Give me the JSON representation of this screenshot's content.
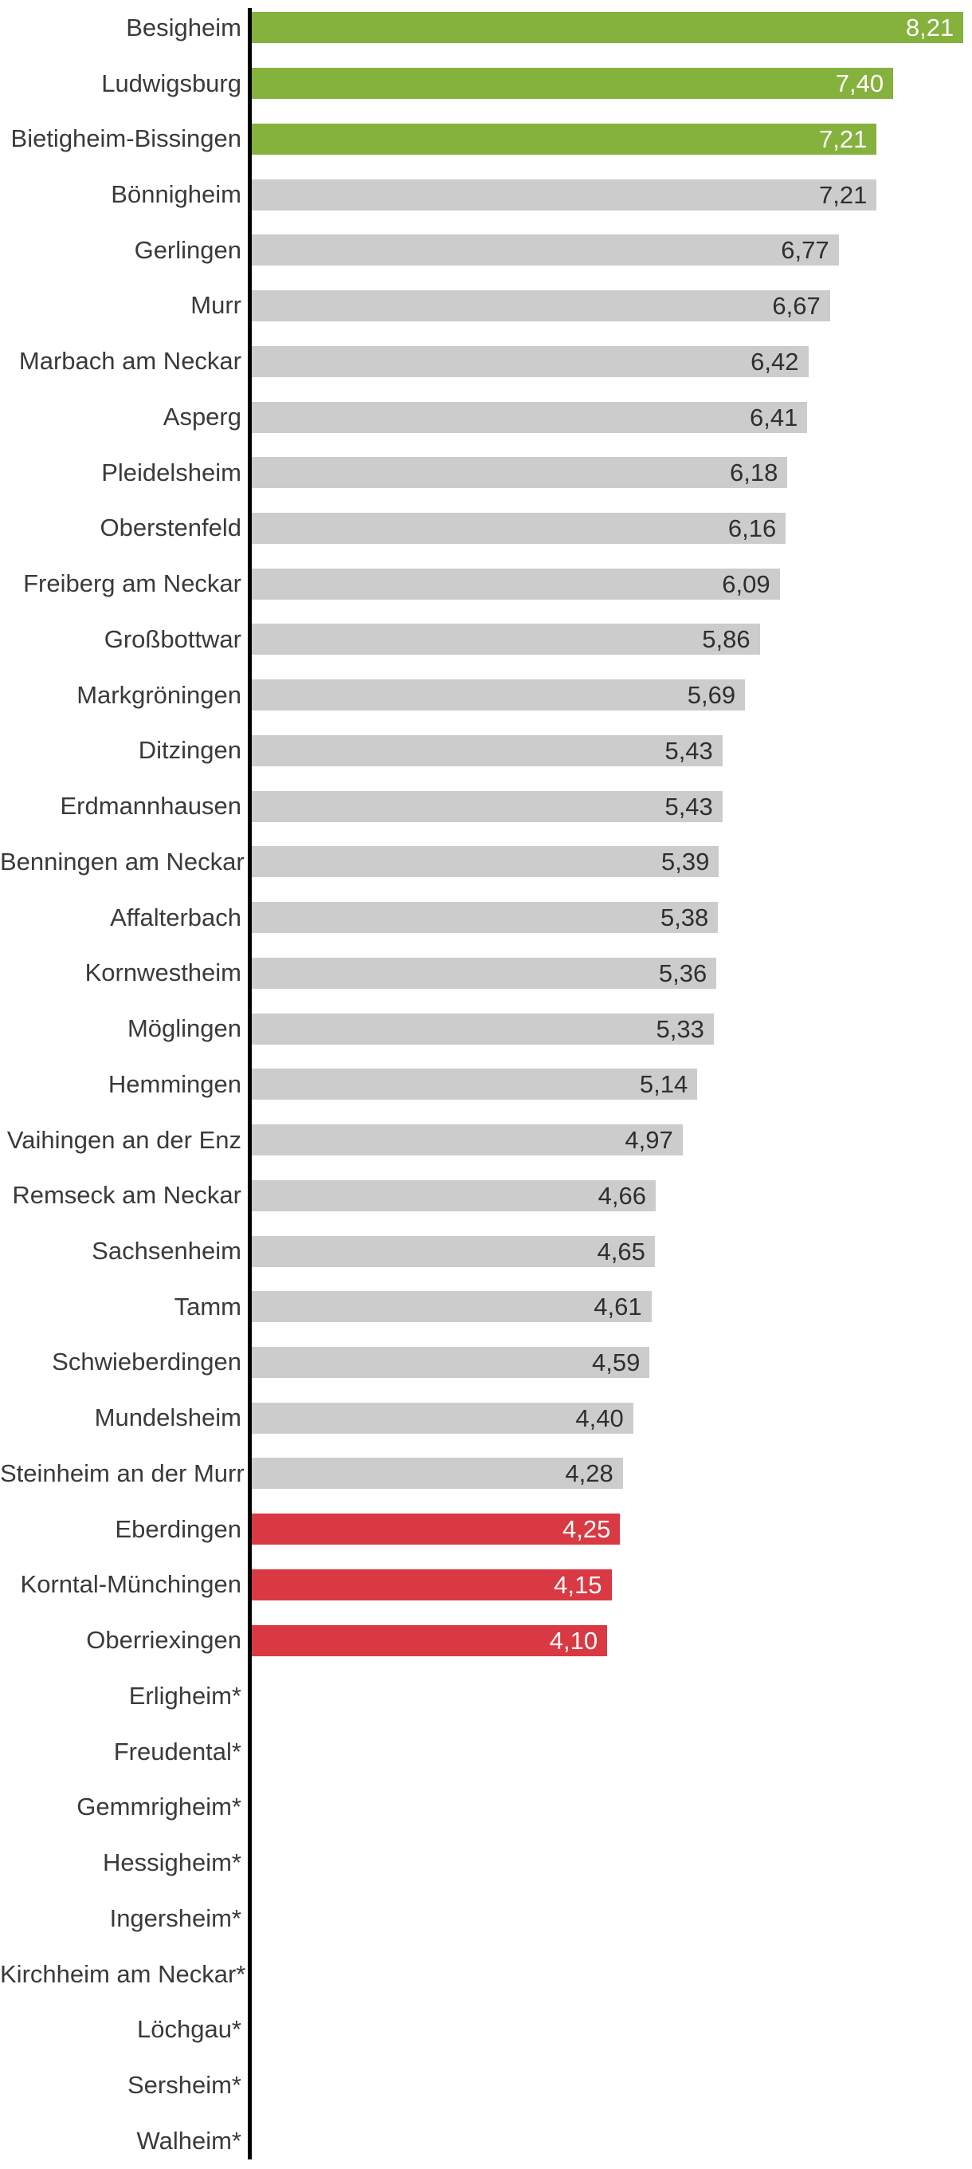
{
  "chart_data": {
    "type": "bar",
    "orientation": "horizontal",
    "title": "",
    "xlabel": "",
    "ylabel": "",
    "x_axis": {
      "min": 0,
      "max": 8.5,
      "gridlines": false,
      "tick_labels": []
    },
    "legend": null,
    "value_format": "two decimals, comma as decimal separator, shown inside bar end",
    "palette": {
      "top": "#85b13d",
      "mid": "#cccccc",
      "bottom": "#d93942",
      "axis": "#000000",
      "label_text": "#3a3a3a",
      "value_text_on_gray": "#2f2f2f",
      "value_text_on_color": "#ffffff"
    },
    "rows": [
      {
        "label": "Besigheim",
        "value": 8.21,
        "value_label": "8,21",
        "state": "top"
      },
      {
        "label": "Ludwigsburg",
        "value": 7.4,
        "value_label": "7,40",
        "state": "top"
      },
      {
        "label": "Bietigheim-Bissingen",
        "value": 7.21,
        "value_label": "7,21",
        "state": "top"
      },
      {
        "label": "Bönnigheim",
        "value": 7.21,
        "value_label": "7,21",
        "state": "mid"
      },
      {
        "label": "Gerlingen",
        "value": 6.77,
        "value_label": "6,77",
        "state": "mid"
      },
      {
        "label": "Murr",
        "value": 6.67,
        "value_label": "6,67",
        "state": "mid"
      },
      {
        "label": "Marbach am Neckar",
        "value": 6.42,
        "value_label": "6,42",
        "state": "mid"
      },
      {
        "label": "Asperg",
        "value": 6.41,
        "value_label": "6,41",
        "state": "mid"
      },
      {
        "label": "Pleidelsheim",
        "value": 6.18,
        "value_label": "6,18",
        "state": "mid"
      },
      {
        "label": "Oberstenfeld",
        "value": 6.16,
        "value_label": "6,16",
        "state": "mid"
      },
      {
        "label": "Freiberg am Neckar",
        "value": 6.09,
        "value_label": "6,09",
        "state": "mid"
      },
      {
        "label": "Großbottwar",
        "value": 5.86,
        "value_label": "5,86",
        "state": "mid"
      },
      {
        "label": "Markgröningen",
        "value": 5.69,
        "value_label": "5,69",
        "state": "mid"
      },
      {
        "label": "Ditzingen",
        "value": 5.43,
        "value_label": "5,43",
        "state": "mid"
      },
      {
        "label": "Erdmannhausen",
        "value": 5.43,
        "value_label": "5,43",
        "state": "mid"
      },
      {
        "label": "Benningen am Neckar",
        "value": 5.39,
        "value_label": "5,39",
        "state": "mid"
      },
      {
        "label": "Affalterbach",
        "value": 5.38,
        "value_label": "5,38",
        "state": "mid"
      },
      {
        "label": "Kornwestheim",
        "value": 5.36,
        "value_label": "5,36",
        "state": "mid"
      },
      {
        "label": "Möglingen",
        "value": 5.33,
        "value_label": "5,33",
        "state": "mid"
      },
      {
        "label": "Hemmingen",
        "value": 5.14,
        "value_label": "5,14",
        "state": "mid"
      },
      {
        "label": "Vaihingen an der Enz",
        "value": 4.97,
        "value_label": "4,97",
        "state": "mid"
      },
      {
        "label": "Remseck am Neckar",
        "value": 4.66,
        "value_label": "4,66",
        "state": "mid"
      },
      {
        "label": "Sachsenheim",
        "value": 4.65,
        "value_label": "4,65",
        "state": "mid"
      },
      {
        "label": "Tamm",
        "value": 4.61,
        "value_label": "4,61",
        "state": "mid"
      },
      {
        "label": "Schwieberdingen",
        "value": 4.59,
        "value_label": "4,59",
        "state": "mid"
      },
      {
        "label": "Mundelsheim",
        "value": 4.4,
        "value_label": "4,40",
        "state": "mid"
      },
      {
        "label": "Steinheim an der Murr",
        "value": 4.28,
        "value_label": "4,28",
        "state": "mid"
      },
      {
        "label": "Eberdingen",
        "value": 4.25,
        "value_label": "4,25",
        "state": "bottom"
      },
      {
        "label": "Korntal-Münchingen",
        "value": 4.15,
        "value_label": "4,15",
        "state": "bottom"
      },
      {
        "label": "Oberriexingen",
        "value": 4.1,
        "value_label": "4,10",
        "state": "bottom"
      },
      {
        "label": "Erligheim*",
        "value": null,
        "value_label": "",
        "state": "none"
      },
      {
        "label": "Freudental*",
        "value": null,
        "value_label": "",
        "state": "none"
      },
      {
        "label": "Gemmrigheim*",
        "value": null,
        "value_label": "",
        "state": "none"
      },
      {
        "label": "Hessigheim*",
        "value": null,
        "value_label": "",
        "state": "none"
      },
      {
        "label": "Ingersheim*",
        "value": null,
        "value_label": "",
        "state": "none"
      },
      {
        "label": "Kirchheim am Neckar*",
        "value": null,
        "value_label": "",
        "state": "none"
      },
      {
        "label": "Löchgau*",
        "value": null,
        "value_label": "",
        "state": "none"
      },
      {
        "label": "Sersheim*",
        "value": null,
        "value_label": "",
        "state": "none"
      },
      {
        "label": "Walheim*",
        "value": null,
        "value_label": "",
        "state": "none"
      }
    ]
  }
}
